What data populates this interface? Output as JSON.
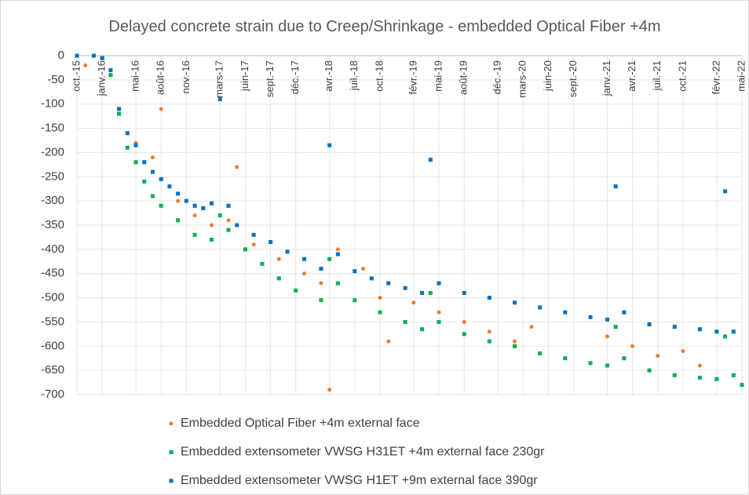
{
  "chart_data": {
    "type": "scatter",
    "title": "Delayed concrete strain due to Creep/Shrinkage - embedded Optical Fiber +4m",
    "xlim": [
      "2015-10",
      "2022-05"
    ],
    "xticks": [
      {
        "value": "2015-10",
        "label": "oct.-15"
      },
      {
        "value": "2016-01",
        "label": "janv.-16"
      },
      {
        "value": "2016-05",
        "label": "mai-16"
      },
      {
        "value": "2016-08",
        "label": "août-16"
      },
      {
        "value": "2016-11",
        "label": "nov.-16"
      },
      {
        "value": "2017-03",
        "label": "mars-17"
      },
      {
        "value": "2017-06",
        "label": "juin-17"
      },
      {
        "value": "2017-09",
        "label": "sept.-17"
      },
      {
        "value": "2017-12",
        "label": "déc.-17"
      },
      {
        "value": "2018-04",
        "label": "avr.-18"
      },
      {
        "value": "2018-07",
        "label": "juil.-18"
      },
      {
        "value": "2018-10",
        "label": "oct.-18"
      },
      {
        "value": "2019-02",
        "label": "févr.-19"
      },
      {
        "value": "2019-05",
        "label": "mai-19"
      },
      {
        "value": "2019-08",
        "label": "août-19"
      },
      {
        "value": "2019-12",
        "label": "déc.-19"
      },
      {
        "value": "2020-03",
        "label": "mars-20"
      },
      {
        "value": "2020-06",
        "label": "juin-20"
      },
      {
        "value": "2020-09",
        "label": "sept.-20"
      },
      {
        "value": "2021-01",
        "label": "janv.-21"
      },
      {
        "value": "2021-04",
        "label": "avr.-21"
      },
      {
        "value": "2021-07",
        "label": "juil.-21"
      },
      {
        "value": "2021-10",
        "label": "oct.-21"
      },
      {
        "value": "2022-02",
        "label": "févr.-22"
      },
      {
        "value": "2022-05",
        "label": "mai-22"
      }
    ],
    "ylim": [
      -700,
      0
    ],
    "yticks": [
      0,
      -50,
      -100,
      -150,
      -200,
      -250,
      -300,
      -350,
      -400,
      -450,
      -500,
      -550,
      -600,
      -650,
      -700
    ],
    "grid": true,
    "legend": "bottom",
    "series": [
      {
        "name": "Embedded Optical Fiber +4m external face",
        "color": "#ed7d31",
        "marker": "circle",
        "x": [
          "2015-11",
          "2016-03",
          "2016-05",
          "2016-07",
          "2016-08",
          "2016-10",
          "2016-12",
          "2017-02",
          "2017-04",
          "2017-05",
          "2017-07",
          "2017-10",
          "2018-01",
          "2018-03",
          "2018-04",
          "2018-05",
          "2018-08",
          "2018-10",
          "2018-11",
          "2019-02",
          "2019-05",
          "2019-08",
          "2019-11",
          "2020-02",
          "2020-04",
          "2021-01",
          "2021-04",
          "2021-07",
          "2021-10",
          "2021-12"
        ],
        "values": [
          -20,
          -120,
          -180,
          -210,
          -110,
          -300,
          -330,
          -350,
          -340,
          -230,
          -390,
          -420,
          -450,
          -470,
          -690,
          -400,
          -440,
          -500,
          -590,
          -510,
          -530,
          -550,
          -570,
          -590,
          -560,
          -580,
          -600,
          -620,
          -610,
          -640
        ]
      },
      {
        "name": "Embedded extensometer VWSG H31ET +4m external face 230gr",
        "color": "#00b050",
        "marker": "square",
        "x": [
          "2015-10",
          "2016-01",
          "2016-02",
          "2016-03",
          "2016-04",
          "2016-05",
          "2016-06",
          "2016-07",
          "2016-08",
          "2016-10",
          "2016-12",
          "2017-02",
          "2017-03",
          "2017-04",
          "2017-06",
          "2017-08",
          "2017-10",
          "2017-12",
          "2018-03",
          "2018-04",
          "2018-05",
          "2018-07",
          "2018-10",
          "2019-01",
          "2019-03",
          "2019-04",
          "2019-05",
          "2019-08",
          "2019-11",
          "2020-02",
          "2020-05",
          "2020-08",
          "2020-11",
          "2021-01",
          "2021-02",
          "2021-03",
          "2021-06",
          "2021-09",
          "2021-12",
          "2022-02",
          "2022-03",
          "2022-04",
          "2022-05"
        ],
        "values": [
          0,
          -5,
          -40,
          -120,
          -190,
          -220,
          -260,
          -290,
          -310,
          -340,
          -370,
          -380,
          -330,
          -360,
          -400,
          -430,
          -460,
          -485,
          -505,
          -420,
          -470,
          -505,
          -530,
          -550,
          -565,
          -490,
          -550,
          -575,
          -590,
          -600,
          -615,
          -625,
          -635,
          -640,
          -560,
          -625,
          -650,
          -660,
          -665,
          -668,
          -580,
          -660,
          -680
        ]
      },
      {
        "name": "Embedded extensometer VWSG H1ET +9m external face 390gr",
        "color": "#0070c0",
        "marker": "square",
        "x": [
          "2015-10",
          "2015-12",
          "2016-01",
          "2016-02",
          "2016-03",
          "2016-04",
          "2016-05",
          "2016-06",
          "2016-07",
          "2016-08",
          "2016-09",
          "2016-10",
          "2016-11",
          "2016-12",
          "2017-01",
          "2017-02",
          "2017-03",
          "2017-04",
          "2017-05",
          "2017-07",
          "2017-09",
          "2017-11",
          "2018-01",
          "2018-03",
          "2018-04",
          "2018-05",
          "2018-07",
          "2018-09",
          "2018-11",
          "2019-01",
          "2019-03",
          "2019-04",
          "2019-05",
          "2019-08",
          "2019-11",
          "2020-02",
          "2020-05",
          "2020-08",
          "2020-11",
          "2021-01",
          "2021-02",
          "2021-03",
          "2021-06",
          "2021-09",
          "2021-12",
          "2022-02",
          "2022-03",
          "2022-04"
        ],
        "values": [
          0,
          0,
          -5,
          -30,
          -110,
          -160,
          -185,
          -220,
          -240,
          -255,
          -270,
          -285,
          -300,
          -310,
          -315,
          -305,
          -90,
          -310,
          -350,
          -370,
          -385,
          -405,
          -420,
          -440,
          -185,
          -410,
          -445,
          -460,
          -470,
          -480,
          -490,
          -215,
          -470,
          -490,
          -500,
          -510,
          -520,
          -530,
          -540,
          -545,
          -270,
          -530,
          -555,
          -560,
          -565,
          -570,
          -280,
          -570
        ]
      }
    ]
  }
}
